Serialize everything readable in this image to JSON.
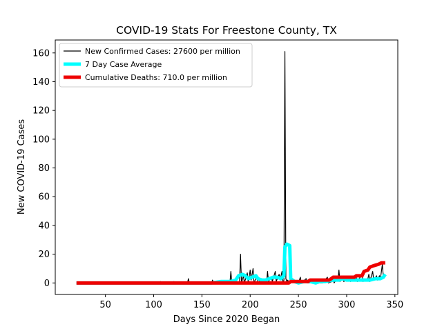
{
  "chart_data": {
    "type": "line",
    "title": "COVID-19 Stats For Freestone County, TX",
    "xlabel": "Days Since 2020 Began",
    "ylabel": "New COVID-19 Cases",
    "xlim": [
      -2,
      353
    ],
    "ylim": [
      -8,
      169
    ],
    "xticks": [
      50,
      100,
      150,
      200,
      250,
      300,
      350
    ],
    "yticks": [
      0,
      20,
      40,
      60,
      80,
      100,
      120,
      140,
      160
    ],
    "legend_position": "top-left",
    "grid": false,
    "series": [
      {
        "name": "New Confirmed Cases: 27600 per million",
        "color": "#000000",
        "points": [
          [
            20,
            0
          ],
          [
            60,
            0
          ],
          [
            100,
            0
          ],
          [
            106,
            0
          ],
          [
            107,
            1
          ],
          [
            108,
            0
          ],
          [
            120,
            0
          ],
          [
            121,
            1
          ],
          [
            122,
            0
          ],
          [
            135,
            0
          ],
          [
            136,
            3
          ],
          [
            137,
            0
          ],
          [
            150,
            0
          ],
          [
            160,
            0
          ],
          [
            161,
            2
          ],
          [
            162,
            0
          ],
          [
            170,
            0
          ],
          [
            175,
            1
          ],
          [
            179,
            0
          ],
          [
            180,
            8
          ],
          [
            181,
            0
          ],
          [
            185,
            2
          ],
          [
            186,
            0
          ],
          [
            189,
            0
          ],
          [
            190,
            20
          ],
          [
            191,
            0
          ],
          [
            193,
            5
          ],
          [
            194,
            0
          ],
          [
            197,
            7
          ],
          [
            198,
            0
          ],
          [
            200,
            9
          ],
          [
            201,
            2
          ],
          [
            203,
            10
          ],
          [
            204,
            0
          ],
          [
            207,
            5
          ],
          [
            208,
            0
          ],
          [
            212,
            3
          ],
          [
            213,
            1
          ],
          [
            217,
            0
          ],
          [
            218,
            8
          ],
          [
            219,
            1
          ],
          [
            222,
            4
          ],
          [
            223,
            1
          ],
          [
            226,
            8
          ],
          [
            227,
            1
          ],
          [
            230,
            6
          ],
          [
            231,
            2
          ],
          [
            233,
            8
          ],
          [
            234,
            0
          ],
          [
            235,
            2
          ],
          [
            236,
            161
          ],
          [
            237,
            3
          ],
          [
            238,
            1
          ],
          [
            239,
            2
          ],
          [
            240,
            0
          ],
          [
            245,
            2
          ],
          [
            246,
            0
          ],
          [
            250,
            0
          ],
          [
            252,
            4
          ],
          [
            253,
            0
          ],
          [
            258,
            3
          ],
          [
            259,
            0
          ],
          [
            266,
            0
          ],
          [
            270,
            2
          ],
          [
            271,
            0
          ],
          [
            275,
            0
          ],
          [
            280,
            4
          ],
          [
            281,
            0
          ],
          [
            285,
            1
          ],
          [
            286,
            3
          ],
          [
            287,
            0
          ],
          [
            290,
            3
          ],
          [
            291,
            2
          ],
          [
            292,
            9
          ],
          [
            293,
            1
          ],
          [
            296,
            3
          ],
          [
            297,
            1
          ],
          [
            303,
            3
          ],
          [
            304,
            1
          ],
          [
            310,
            4
          ],
          [
            311,
            1
          ],
          [
            316,
            6
          ],
          [
            317,
            1
          ],
          [
            322,
            3
          ],
          [
            323,
            6
          ],
          [
            324,
            1
          ],
          [
            327,
            8
          ],
          [
            328,
            2
          ],
          [
            331,
            5
          ],
          [
            332,
            2
          ],
          [
            334,
            5
          ],
          [
            335,
            3
          ],
          [
            337,
            13
          ],
          [
            338,
            4
          ],
          [
            340,
            6
          ]
        ]
      },
      {
        "name": "7 Day Case Average",
        "color": "#00ffff",
        "points": [
          [
            20,
            0
          ],
          [
            160,
            0
          ],
          [
            170,
            1
          ],
          [
            180,
            1
          ],
          [
            185,
            2
          ],
          [
            188,
            5
          ],
          [
            192,
            6
          ],
          [
            195,
            5
          ],
          [
            198,
            3
          ],
          [
            202,
            4
          ],
          [
            206,
            5
          ],
          [
            208,
            3
          ],
          [
            212,
            2
          ],
          [
            216,
            2
          ],
          [
            220,
            3
          ],
          [
            224,
            4
          ],
          [
            228,
            4
          ],
          [
            232,
            3
          ],
          [
            235,
            5
          ],
          [
            236,
            25
          ],
          [
            238,
            27
          ],
          [
            241,
            26
          ],
          [
            242,
            3
          ],
          [
            246,
            1
          ],
          [
            250,
            0
          ],
          [
            256,
            1
          ],
          [
            262,
            1
          ],
          [
            268,
            0
          ],
          [
            272,
            1
          ],
          [
            278,
            1
          ],
          [
            285,
            2
          ],
          [
            292,
            2
          ],
          [
            296,
            3
          ],
          [
            300,
            2
          ],
          [
            306,
            2
          ],
          [
            312,
            2
          ],
          [
            318,
            2
          ],
          [
            324,
            2
          ],
          [
            330,
            3
          ],
          [
            335,
            3
          ],
          [
            338,
            4
          ],
          [
            340,
            6
          ]
        ]
      },
      {
        "name": "Cumulative Deaths: 710.0 per million",
        "color": "#ee0000",
        "points": [
          [
            20,
            0
          ],
          [
            240,
            0
          ],
          [
            242,
            1
          ],
          [
            260,
            1
          ],
          [
            262,
            2
          ],
          [
            282,
            2
          ],
          [
            284,
            3
          ],
          [
            286,
            4
          ],
          [
            308,
            4
          ],
          [
            310,
            5
          ],
          [
            316,
            5
          ],
          [
            318,
            8
          ],
          [
            322,
            9
          ],
          [
            324,
            11
          ],
          [
            328,
            12
          ],
          [
            333,
            13
          ],
          [
            336,
            14
          ],
          [
            340,
            14
          ]
        ]
      }
    ]
  }
}
